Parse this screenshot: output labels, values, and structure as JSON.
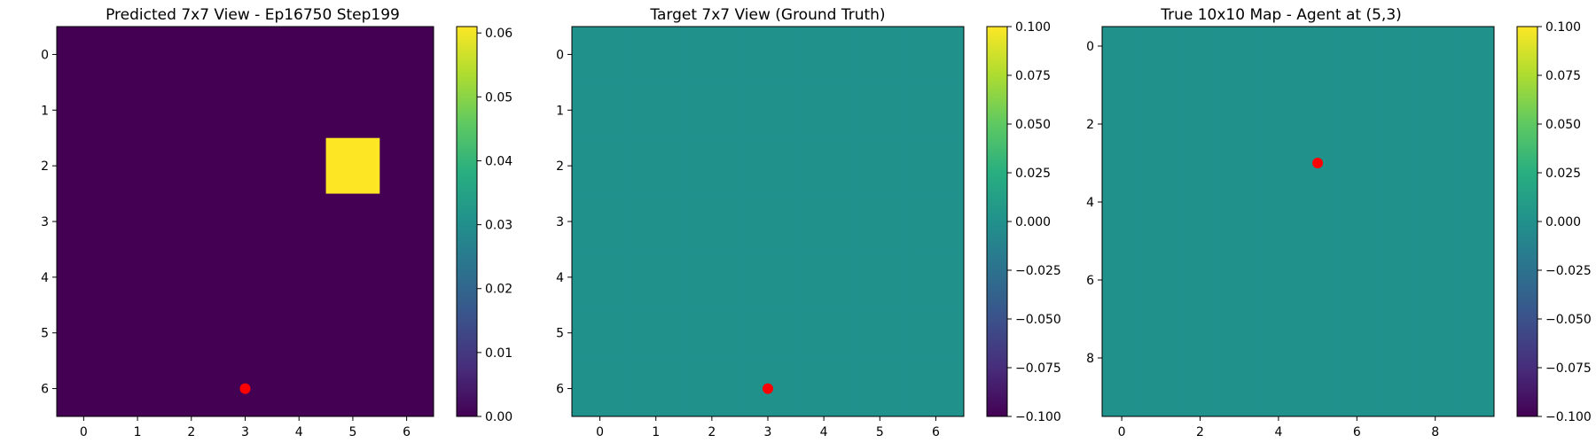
{
  "chart_data": [
    {
      "type": "heatmap",
      "title": "Predicted 7x7 View - Ep16750 Step199",
      "xticks": [
        "0",
        "1",
        "2",
        "3",
        "4",
        "5",
        "6"
      ],
      "yticks": [
        "0",
        "1",
        "2",
        "3",
        "4",
        "5",
        "6"
      ],
      "xlim": [
        -0.5,
        6.5
      ],
      "ylim": [
        6.5,
        -0.5
      ],
      "values": [
        [
          0,
          0,
          0,
          0,
          0,
          0,
          0
        ],
        [
          0,
          0,
          0,
          0,
          0,
          0,
          0
        ],
        [
          0,
          0,
          0,
          0,
          0,
          0.061,
          0
        ],
        [
          0,
          0,
          0,
          0,
          0,
          0,
          0
        ],
        [
          0,
          0,
          0,
          0,
          0,
          0,
          0
        ],
        [
          0,
          0,
          0,
          0,
          0,
          0,
          0
        ],
        [
          0,
          0,
          0,
          0,
          0,
          0,
          0
        ]
      ],
      "vmin": 0.0,
      "vmax": 0.061,
      "colorbar_ticks": [
        "0.00",
        "0.01",
        "0.02",
        "0.03",
        "0.04",
        "0.05",
        "0.06"
      ],
      "colorbar_tick_values": [
        0,
        0.01,
        0.02,
        0.03,
        0.04,
        0.05,
        0.06
      ],
      "marker": {
        "x": 3,
        "y": 6,
        "color": "#ff0000"
      },
      "colormap": "viridis",
      "grid": false
    },
    {
      "type": "heatmap",
      "title": "Target 7x7 View (Ground Truth)",
      "xticks": [
        "0",
        "1",
        "2",
        "3",
        "4",
        "5",
        "6"
      ],
      "yticks": [
        "0",
        "1",
        "2",
        "3",
        "4",
        "5",
        "6"
      ],
      "xlim": [
        -0.5,
        6.5
      ],
      "ylim": [
        6.5,
        -0.5
      ],
      "values": [
        [
          0,
          0,
          0,
          0,
          0,
          0,
          0
        ],
        [
          0,
          0,
          0,
          0,
          0,
          0,
          0
        ],
        [
          0,
          0,
          0,
          0,
          0,
          0,
          0
        ],
        [
          0,
          0,
          0,
          0,
          0,
          0,
          0
        ],
        [
          0,
          0,
          0,
          0,
          0,
          0,
          0
        ],
        [
          0,
          0,
          0,
          0,
          0,
          0,
          0
        ],
        [
          0,
          0,
          0,
          0,
          0,
          0,
          0
        ]
      ],
      "vmin": -0.1,
      "vmax": 0.1,
      "colorbar_ticks": [
        "−0.100",
        "−0.075",
        "−0.050",
        "−0.025",
        "0.000",
        "0.025",
        "0.050",
        "0.075",
        "0.100"
      ],
      "colorbar_tick_values": [
        -0.1,
        -0.075,
        -0.05,
        -0.025,
        0,
        0.025,
        0.05,
        0.075,
        0.1
      ],
      "marker": {
        "x": 3,
        "y": 6,
        "color": "#ff0000"
      },
      "colormap": "viridis",
      "grid": false
    },
    {
      "type": "heatmap",
      "title": "True 10x10 Map - Agent at (5,3)",
      "xticks": [
        "0",
        "2",
        "4",
        "6",
        "8"
      ],
      "xtick_values": [
        0,
        2,
        4,
        6,
        8
      ],
      "yticks": [
        "0",
        "2",
        "4",
        "6",
        "8"
      ],
      "ytick_values": [
        0,
        2,
        4,
        6,
        8
      ],
      "xlim": [
        -0.5,
        9.5
      ],
      "ylim": [
        9.5,
        -0.5
      ],
      "grid_size": 10,
      "uniform_value": 0,
      "vmin": -0.1,
      "vmax": 0.1,
      "colorbar_ticks": [
        "−0.100",
        "−0.075",
        "−0.050",
        "−0.025",
        "0.000",
        "0.025",
        "0.050",
        "0.075",
        "0.100"
      ],
      "colorbar_tick_values": [
        -0.1,
        -0.075,
        -0.05,
        -0.025,
        0,
        0.025,
        0.05,
        0.075,
        0.1
      ],
      "marker": {
        "x": 5,
        "y": 3,
        "color": "#ff0000"
      },
      "colormap": "viridis",
      "grid": false
    }
  ]
}
